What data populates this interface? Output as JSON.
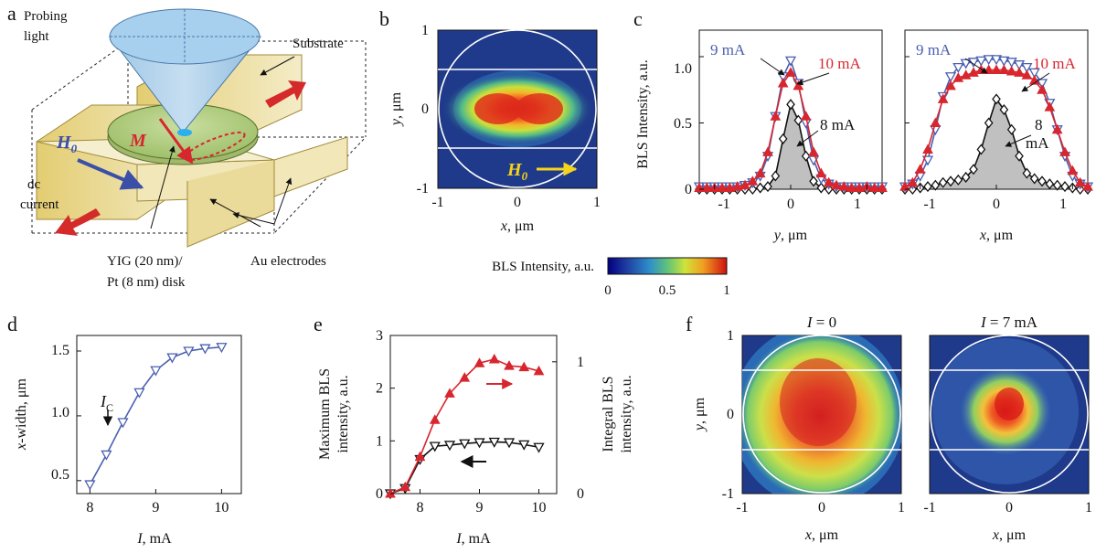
{
  "panel_labels": {
    "a": "a",
    "b": "b",
    "c": "c",
    "d": "d",
    "e": "e",
    "f": "f"
  },
  "panel_a": {
    "probing_light": [
      "Probing",
      "light"
    ],
    "substrate": "Substrate",
    "h0": "H",
    "h0_sub": "0",
    "m": "M",
    "dc_current": [
      "dc",
      "current"
    ],
    "disk": [
      "YIG (20 nm)/",
      "Pt (8 nm) disk"
    ],
    "electrodes": "Au electrodes"
  },
  "colorbar": {
    "label": "BLS Intensity, a.u.",
    "ticks": [
      "0",
      "0.5",
      "1"
    ]
  },
  "chart_data": [
    {
      "id": "b",
      "type": "heatmap",
      "description_values": "spatial BLS intensity map, elongated along x, peak ~1 at center",
      "xlabel_var": "x",
      "xlabel_unit": ", μm",
      "ylabel_var": "y",
      "ylabel_unit": ", μm",
      "xlim": [
        -1,
        1
      ],
      "ylim": [
        -1,
        1
      ],
      "xticks": [
        "-1",
        "0",
        "1"
      ],
      "yticks": [
        "-1",
        "0",
        "1"
      ],
      "annotation": "H",
      "annotation_sub": "0"
    },
    {
      "id": "c-left",
      "type": "line",
      "xlabel_var": "y",
      "xlabel_unit": ", μm",
      "ylabel": "BLS Intensity, a.u.",
      "xlim": [
        -1.2,
        1.2
      ],
      "ylim": [
        0,
        1.2
      ],
      "xticks": [
        "-1",
        "0",
        "1"
      ],
      "yticks": [
        "0",
        "0.5",
        "1.0"
      ],
      "x": [
        -1.2,
        -1.1,
        -1.0,
        -0.9,
        -0.8,
        -0.7,
        -0.6,
        -0.5,
        -0.4,
        -0.3,
        -0.2,
        -0.1,
        0.0,
        0.1,
        0.2,
        0.3,
        0.4,
        0.5,
        0.6,
        0.7,
        0.8,
        0.9,
        1.0,
        1.1,
        1.2
      ],
      "series": [
        {
          "name": "9 mA",
          "color": "#4a5fb0",
          "marker": "tri-down-open",
          "values": [
            0.02,
            0.02,
            0.02,
            0.02,
            0.02,
            0.02,
            0.03,
            0.05,
            0.1,
            0.25,
            0.55,
            0.85,
            0.97,
            0.8,
            0.5,
            0.22,
            0.08,
            0.04,
            0.02,
            0.02,
            0.02,
            0.02,
            0.02,
            0.02,
            0.02
          ]
        },
        {
          "name": "10 mA",
          "color": "#d8262e",
          "marker": "tri-up-filled",
          "values": [
            0.01,
            0.01,
            0.01,
            0.01,
            0.01,
            0.02,
            0.03,
            0.06,
            0.12,
            0.28,
            0.55,
            0.8,
            0.88,
            0.78,
            0.55,
            0.28,
            0.12,
            0.05,
            0.03,
            0.02,
            0.01,
            0.01,
            0.02,
            0.01,
            0.01
          ]
        },
        {
          "name": "8 mA",
          "color": "#111111",
          "marker": "diamond-open",
          "fill": "#c0c0c0",
          "values": [
            0.0,
            0.0,
            0.0,
            0.0,
            0.0,
            0.0,
            0.0,
            0.0,
            0.01,
            0.02,
            0.1,
            0.38,
            0.64,
            0.52,
            0.25,
            0.06,
            0.01,
            0.0,
            0.0,
            0.0,
            0.0,
            0.0,
            0.0,
            0.0,
            0.0
          ]
        }
      ],
      "annotations": [
        "9 mA",
        "10 mA",
        "8 mA"
      ]
    },
    {
      "id": "c-right",
      "type": "line",
      "xlabel_var": "x",
      "xlabel_unit": ", μm",
      "xlim": [
        -1.2,
        1.2
      ],
      "ylim": [
        0,
        1.2
      ],
      "xticks": [
        "-1",
        "0",
        "1"
      ],
      "x": [
        -1.2,
        -1.1,
        -1.0,
        -0.9,
        -0.8,
        -0.7,
        -0.6,
        -0.5,
        -0.4,
        -0.3,
        -0.2,
        -0.1,
        0.0,
        0.1,
        0.2,
        0.3,
        0.4,
        0.5,
        0.6,
        0.7,
        0.8,
        0.9,
        1.0,
        1.1,
        1.2
      ],
      "series": [
        {
          "name": "9 mA",
          "color": "#4a5fb0",
          "marker": "tri-down-open",
          "values": [
            0.02,
            0.04,
            0.1,
            0.22,
            0.45,
            0.7,
            0.85,
            0.92,
            0.95,
            0.96,
            0.97,
            0.98,
            0.98,
            0.97,
            0.96,
            0.94,
            0.92,
            0.88,
            0.8,
            0.65,
            0.45,
            0.25,
            0.1,
            0.04,
            0.02
          ]
        },
        {
          "name": "10 mA",
          "color": "#d8262e",
          "marker": "tri-up-filled",
          "values": [
            0.02,
            0.05,
            0.15,
            0.3,
            0.5,
            0.68,
            0.78,
            0.84,
            0.86,
            0.88,
            0.9,
            0.9,
            0.9,
            0.9,
            0.89,
            0.88,
            0.86,
            0.82,
            0.75,
            0.62,
            0.45,
            0.28,
            0.14,
            0.05,
            0.02
          ]
        },
        {
          "name": "8 mA",
          "color": "#111111",
          "marker": "diamond-open",
          "fill": "#c0c0c0",
          "values": [
            0.0,
            0.0,
            0.01,
            0.02,
            0.03,
            0.05,
            0.06,
            0.07,
            0.09,
            0.15,
            0.3,
            0.5,
            0.68,
            0.6,
            0.45,
            0.25,
            0.12,
            0.08,
            0.06,
            0.04,
            0.03,
            0.02,
            0.01,
            0.0,
            0.0
          ]
        }
      ],
      "annotations": [
        "9 mA",
        "10 mA",
        "8",
        "mA"
      ]
    },
    {
      "id": "d",
      "type": "line",
      "xlabel_var": "I",
      "xlabel_unit": ", mA",
      "ylabel_var": "x",
      "ylabel_unit": "-width, μm",
      "xlim": [
        7.8,
        10.3
      ],
      "ylim": [
        0.4,
        1.62
      ],
      "xticks": [
        "8",
        "9",
        "10"
      ],
      "yticks": [
        "0.5",
        "1.0",
        "1.5"
      ],
      "x": [
        8.0,
        8.25,
        8.5,
        8.75,
        9.0,
        9.25,
        9.5,
        9.75,
        10.0
      ],
      "values": [
        0.47,
        0.7,
        0.95,
        1.18,
        1.35,
        1.45,
        1.5,
        1.52,
        1.53
      ],
      "color": "#4a5fb0",
      "annotation": "I",
      "annotation_sub": "C"
    },
    {
      "id": "e",
      "type": "line",
      "xlabel_var": "I",
      "xlabel_unit": ", mA",
      "ylabel": [
        "Maximum BLS",
        "intensity, a.u."
      ],
      "ylabel2": [
        "Integral BLS",
        "intensity, a.u."
      ],
      "xlim": [
        7.5,
        10.3
      ],
      "ylim": [
        0,
        3
      ],
      "ylim2": [
        0,
        1.2
      ],
      "xticks": [
        "8",
        "9",
        "10"
      ],
      "yticks": [
        "0",
        "1",
        "2",
        "3"
      ],
      "yticks2": [
        "0",
        "1"
      ],
      "x": [
        7.5,
        7.75,
        8.0,
        8.25,
        8.5,
        8.75,
        9.0,
        9.25,
        9.5,
        9.75,
        10.0
      ],
      "series": [
        {
          "name": "maximum",
          "color": "#111111",
          "marker": "tri-down-open",
          "axis": "left",
          "values": [
            0.0,
            0.1,
            0.65,
            0.9,
            0.92,
            0.95,
            0.97,
            0.98,
            0.97,
            0.93,
            0.88
          ]
        },
        {
          "name": "integral",
          "color": "#d8262e",
          "marker": "tri-up-filled",
          "axis": "right",
          "values": [
            0.0,
            0.05,
            0.28,
            0.56,
            0.76,
            0.88,
            0.99,
            1.02,
            0.97,
            0.96,
            0.93
          ]
        }
      ]
    },
    {
      "id": "f-left",
      "type": "heatmap",
      "title_var": "I",
      "title_rest": " = 0",
      "xlabel_var": "x",
      "xlabel_unit": ", μm",
      "ylabel_var": "y",
      "ylabel_unit": ", μm",
      "xlim": [
        -1,
        1
      ],
      "ylim": [
        -1,
        1
      ],
      "xticks": [
        "-1",
        "0",
        "1"
      ],
      "yticks": [
        "-1",
        "0",
        "1"
      ]
    },
    {
      "id": "f-right",
      "type": "heatmap",
      "title_var": "I",
      "title_rest": " = 7 mA",
      "xlabel_var": "x",
      "xlabel_unit": ", μm",
      "xlim": [
        -1,
        1
      ],
      "ylim": [
        -1,
        1
      ],
      "xticks": [
        "-1",
        "0",
        "1"
      ]
    }
  ]
}
